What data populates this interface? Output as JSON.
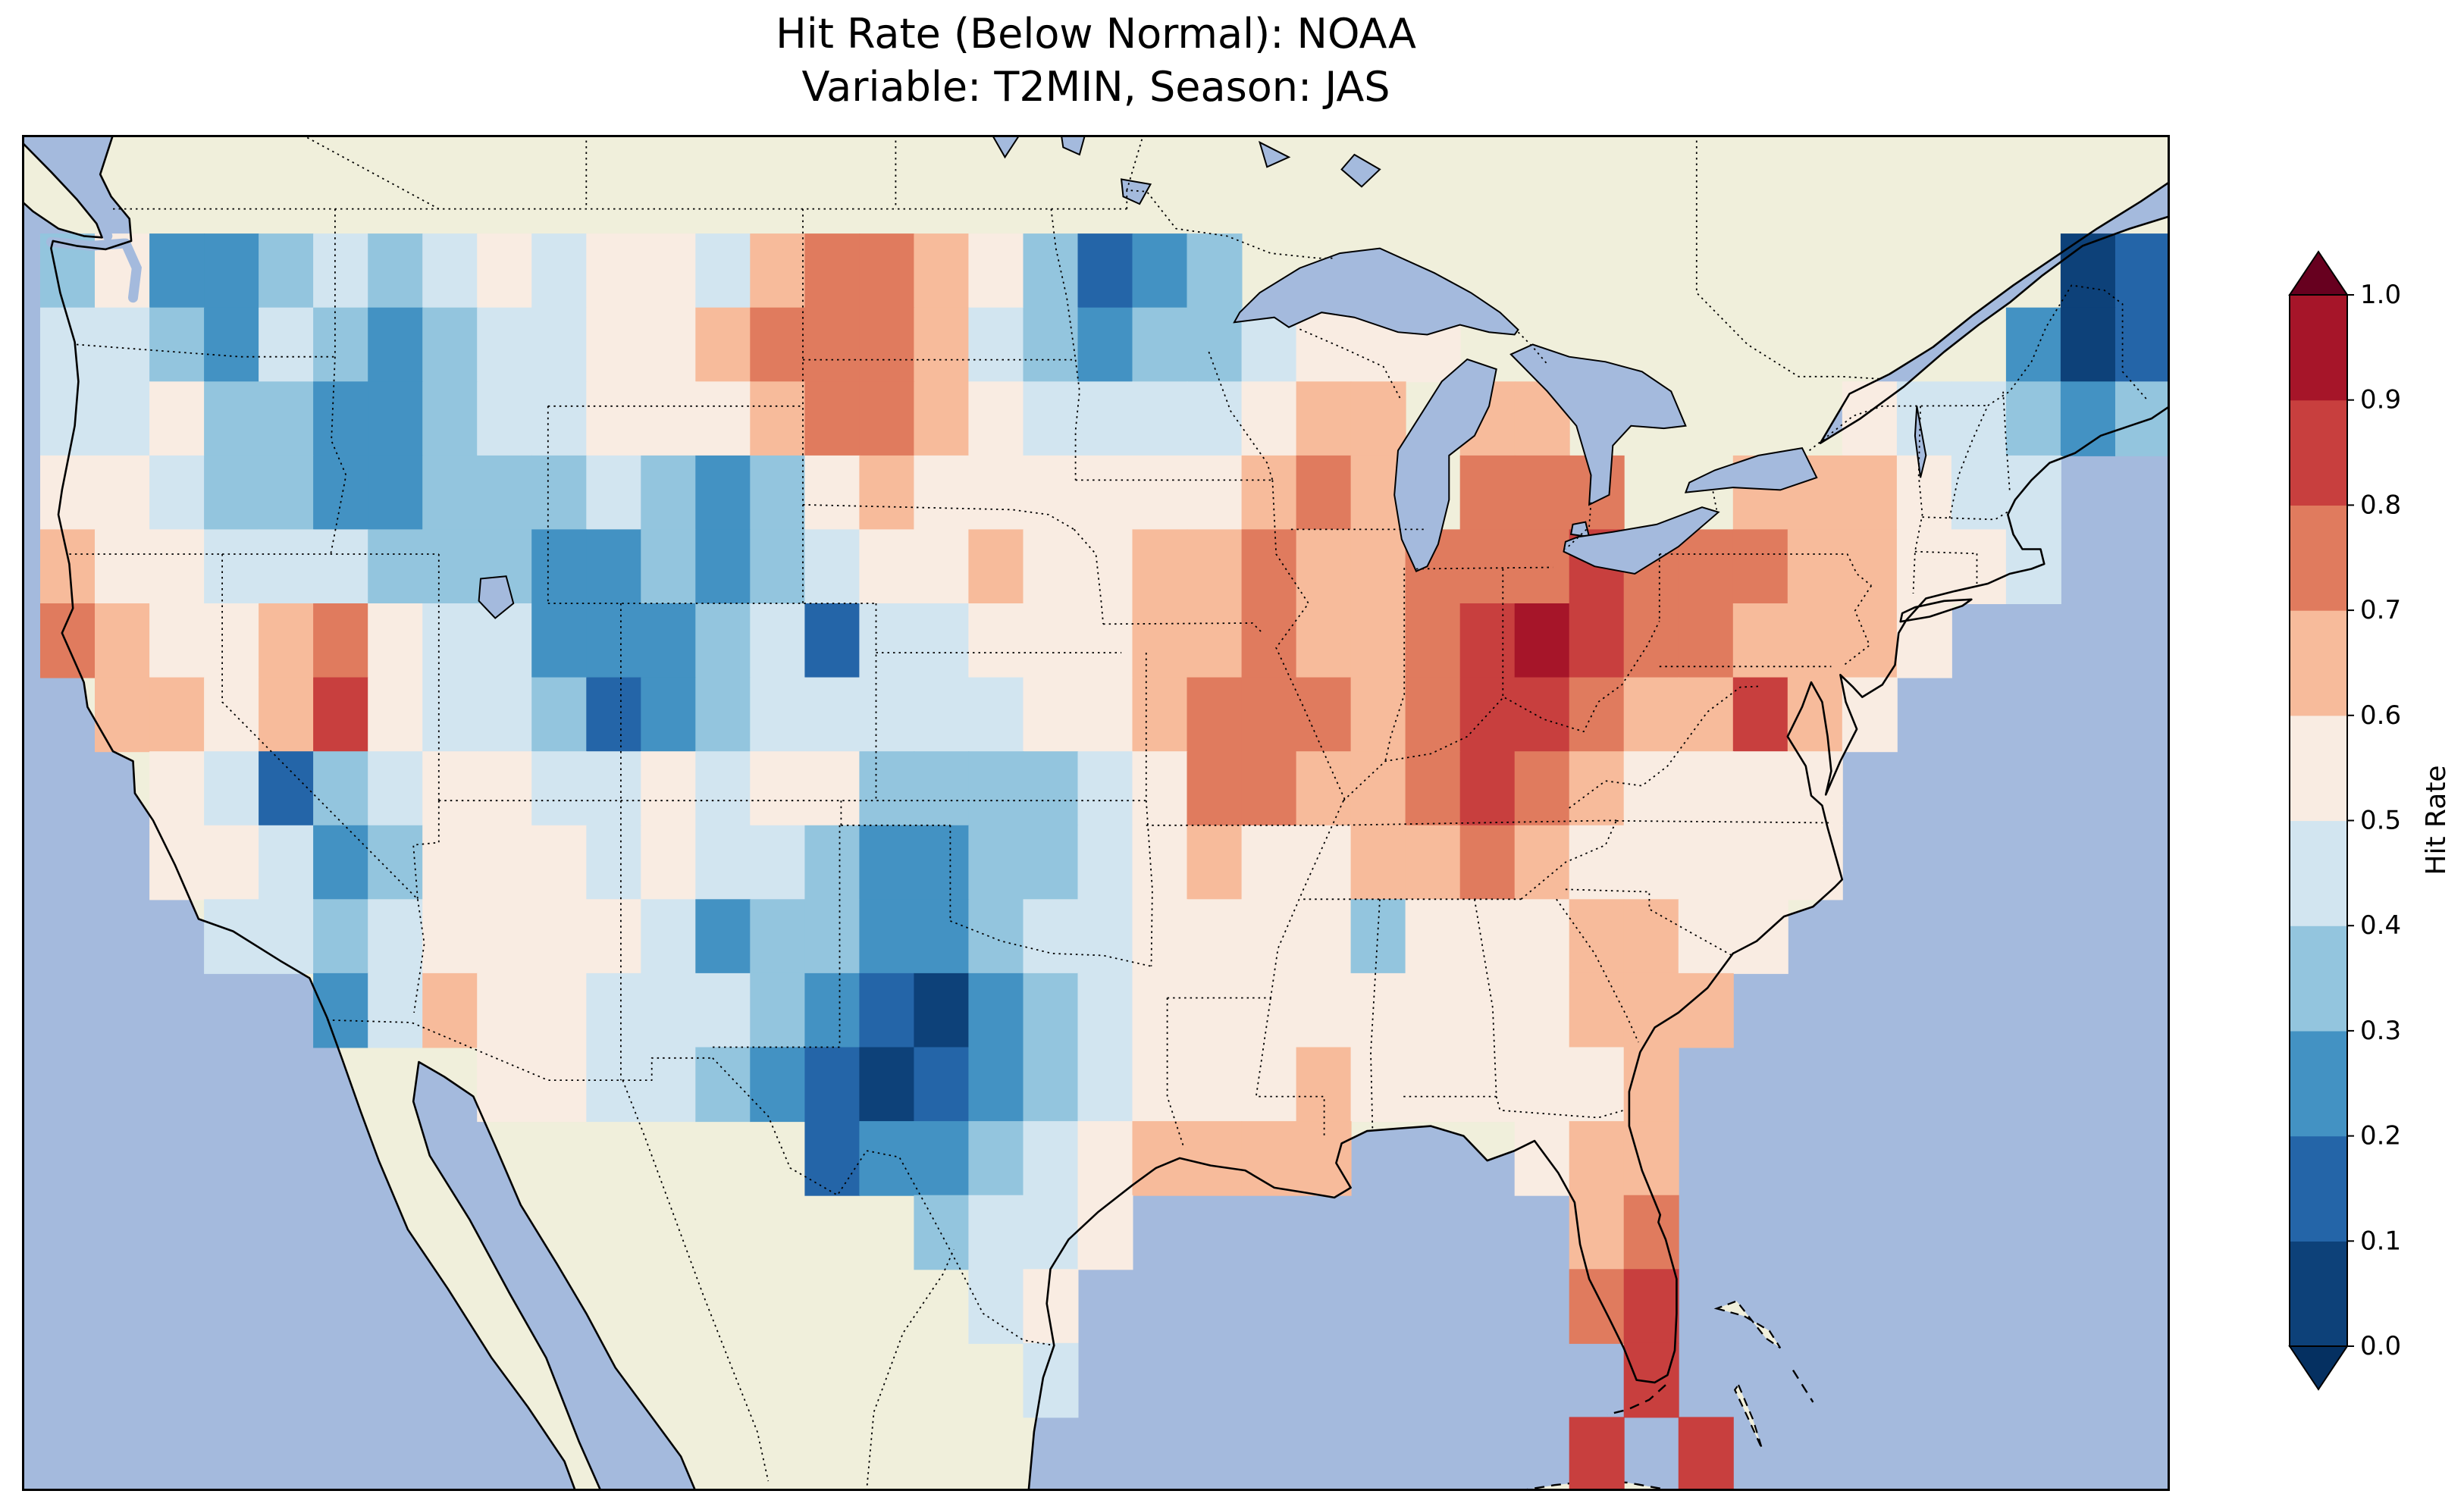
{
  "figure": {
    "title_line1": "Hit Rate (Below Normal): NOAA",
    "title_line2": "Variable: T2MIN, Season: JAS"
  },
  "colorbar": {
    "label": "Hit Rate",
    "ticks": [
      "0.0",
      "0.1",
      "0.2",
      "0.3",
      "0.4",
      "0.5",
      "0.6",
      "0.7",
      "0.8",
      "0.9",
      "1.0"
    ],
    "bin_colors": [
      "#0d4179",
      "#2465a8",
      "#4392c3",
      "#93c5de",
      "#d2e5f0",
      "#f9ece2",
      "#f7bb9b",
      "#e07b5e",
      "#c83f3e",
      "#a61529"
    ],
    "under_color": "#053061",
    "over_color": "#67001f"
  },
  "map": {
    "ocean_color": "#a4badd",
    "land_color": "#f0efdb",
    "coast_color": "#000000"
  },
  "chart_data": {
    "type": "heatmap",
    "title": "Hit Rate (Below Normal): NOAA",
    "subtitle": "Variable: T2MIN, Season: JAS",
    "dataset": "NOAA",
    "variable": "T2MIN",
    "season": "JAS",
    "value_name": "Hit Rate",
    "value_range": [
      0.0,
      1.0
    ],
    "colormap": "RdBu_r, 10 discrete bins, colorbar extended with triangles on both ends",
    "legend_position": "right vertical colorbar",
    "map_extent": {
      "lon_min": -125.5,
      "lon_max": -66.5,
      "lat_min": 23.0,
      "lat_max": 50.5
    },
    "grid": {
      "lon_start": -125.0,
      "lon_step": 1.5,
      "lat_start": 50.0,
      "lat_step": -1.5,
      "encoding": "each character is a hit-rate bin digit d, meaning value between d/10 and (d+1)/10; '.' = no data (outside CONUS)",
      "rows": [
        ".......................................",
        "3522343454554677653123...............01",
        "44324323445567776432334555..........201",
        "4453322344555677654444566.66.....544323",
        "5543322333432356555555676.777..666544..",
        "6554443332232345565566766777877766554..",
        "76556754422234144555667667898776665....",
        ".665685443123444445567776788766865.....",
        "..5413455445455333345776678765555......",
        "..5542355545443223345655667655555......",
        "...44345555423322344555535556655.......",
        ".....24655444321023455555555666........",
        "........5544321012345556555556.........",
        "..............1223456666...566.........",
        "................3445........67.........",
        ".................45.........78.........",
        "..................4..........8.........",
        "............................8.8........"
      ]
    }
  }
}
